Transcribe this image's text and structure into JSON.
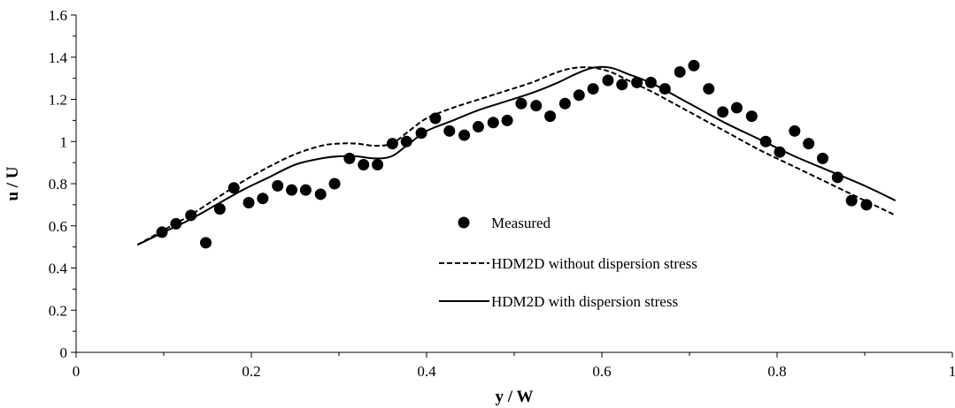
{
  "chart_data": {
    "type": "scatter",
    "title": "",
    "xlabel": "y / W",
    "ylabel": "u / U",
    "xlim": [
      0,
      1
    ],
    "ylim": [
      0,
      1.6
    ],
    "xticks": [
      "0",
      "0.2",
      "0.4",
      "0.6",
      "0.8",
      "1"
    ],
    "xtick_values": [
      0,
      0.2,
      0.4,
      0.6,
      0.8,
      1
    ],
    "yticks": [
      "0",
      "0.2",
      "0.4",
      "0.6",
      "0.8",
      "1",
      "1.2",
      "1.4",
      "1.6"
    ],
    "ytick_values": [
      0,
      0.2,
      0.4,
      0.6,
      0.8,
      1,
      1.2,
      1.4,
      1.6
    ],
    "grid": false,
    "legend_position": "center",
    "series": [
      {
        "name": "Measured",
        "kind": "scatter",
        "marker": "circle",
        "color": "#000000",
        "x": [
          0.098,
          0.114,
          0.131,
          0.148,
          0.164,
          0.18,
          0.197,
          0.213,
          0.23,
          0.246,
          0.262,
          0.279,
          0.295,
          0.312,
          0.328,
          0.344,
          0.361,
          0.377,
          0.394,
          0.41,
          0.426,
          0.443,
          0.459,
          0.476,
          0.492,
          0.508,
          0.525,
          0.541,
          0.558,
          0.574,
          0.59,
          0.607,
          0.623,
          0.64,
          0.656,
          0.672,
          0.689,
          0.705,
          0.722,
          0.738,
          0.754,
          0.771,
          0.787,
          0.803,
          0.82,
          0.836,
          0.852,
          0.869,
          0.885,
          0.902
        ],
        "y": [
          0.57,
          0.61,
          0.65,
          0.52,
          0.68,
          0.78,
          0.71,
          0.73,
          0.79,
          0.77,
          0.77,
          0.75,
          0.8,
          0.92,
          0.89,
          0.89,
          0.99,
          1.0,
          1.04,
          1.11,
          1.05,
          1.03,
          1.07,
          1.09,
          1.1,
          1.18,
          1.17,
          1.12,
          1.18,
          1.22,
          1.25,
          1.29,
          1.27,
          1.28,
          1.28,
          1.25,
          1.33,
          1.36,
          1.25,
          1.14,
          1.16,
          1.12,
          1.0,
          0.95,
          1.05,
          0.99,
          0.92,
          0.83,
          0.72,
          0.7
        ]
      },
      {
        "name": "HDM2D without dispersion stress",
        "kind": "line",
        "dash": "dashed",
        "color": "#000000",
        "x": [
          0.07,
          0.1,
          0.13,
          0.16,
          0.19,
          0.22,
          0.25,
          0.28,
          0.3,
          0.32,
          0.34,
          0.36,
          0.38,
          0.4,
          0.43,
          0.46,
          0.49,
          0.52,
          0.55,
          0.57,
          0.59,
          0.61,
          0.63,
          0.66,
          0.7,
          0.74,
          0.78,
          0.82,
          0.86,
          0.9,
          0.935
        ],
        "y": [
          0.51,
          0.58,
          0.65,
          0.73,
          0.81,
          0.88,
          0.94,
          0.98,
          0.99,
          0.99,
          0.98,
          0.99,
          1.05,
          1.11,
          1.16,
          1.2,
          1.24,
          1.28,
          1.33,
          1.35,
          1.35,
          1.33,
          1.29,
          1.23,
          1.14,
          1.05,
          0.96,
          0.88,
          0.8,
          0.72,
          0.65
        ]
      },
      {
        "name": "HDM2D with dispersion stress",
        "kind": "line",
        "dash": "solid",
        "color": "#000000",
        "x": [
          0.07,
          0.1,
          0.13,
          0.16,
          0.19,
          0.22,
          0.25,
          0.28,
          0.3,
          0.32,
          0.34,
          0.36,
          0.38,
          0.4,
          0.43,
          0.46,
          0.49,
          0.52,
          0.55,
          0.57,
          0.59,
          0.61,
          0.63,
          0.66,
          0.7,
          0.74,
          0.78,
          0.82,
          0.86,
          0.9,
          0.935
        ],
        "y": [
          0.51,
          0.57,
          0.63,
          0.7,
          0.77,
          0.83,
          0.89,
          0.92,
          0.93,
          0.93,
          0.92,
          0.93,
          0.99,
          1.05,
          1.1,
          1.15,
          1.19,
          1.23,
          1.28,
          1.32,
          1.35,
          1.35,
          1.32,
          1.27,
          1.18,
          1.09,
          1.01,
          0.93,
          0.86,
          0.79,
          0.72
        ]
      }
    ]
  }
}
